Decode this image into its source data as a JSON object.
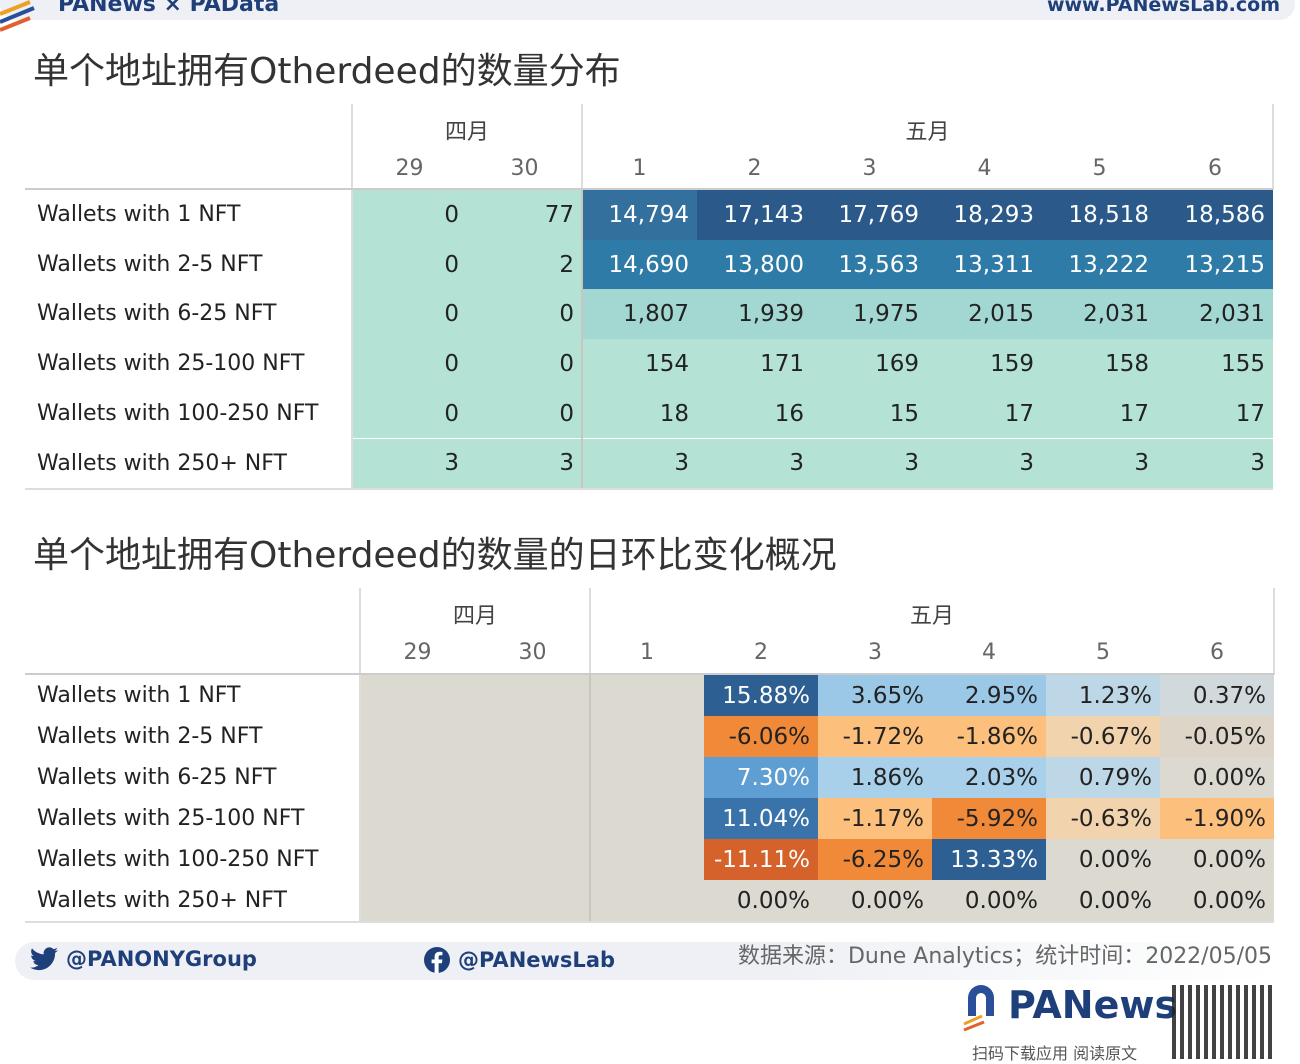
{
  "header": {
    "brand": "PANews × PAData",
    "site": "www.PANewsLab.com"
  },
  "chart_data": [
    {
      "type": "table",
      "title": "单个地址拥有Otherdeed的数量分布",
      "month_groups": [
        {
          "label": "四月",
          "days": [
            "29",
            "30"
          ]
        },
        {
          "label": "五月",
          "days": [
            "1",
            "2",
            "3",
            "4",
            "5",
            "6"
          ]
        }
      ],
      "rows": [
        {
          "label": "Wallets with 1 NFT",
          "values": [
            "0",
            "77",
            "14,794",
            "17,143",
            "17,769",
            "18,293",
            "18,518",
            "18,586"
          ]
        },
        {
          "label": "Wallets with 2-5 NFT",
          "values": [
            "0",
            "2",
            "14,690",
            "13,800",
            "13,563",
            "13,311",
            "13,222",
            "13,215"
          ]
        },
        {
          "label": "Wallets with 6-25 NFT",
          "values": [
            "0",
            "0",
            "1,807",
            "1,939",
            "1,975",
            "2,015",
            "2,031",
            "2,031"
          ]
        },
        {
          "label": "Wallets with 25-100 NFT",
          "values": [
            "0",
            "0",
            "154",
            "171",
            "169",
            "159",
            "158",
            "155"
          ]
        },
        {
          "label": "Wallets with 100-250 NFT",
          "values": [
            "0",
            "0",
            "18",
            "16",
            "15",
            "17",
            "17",
            "17"
          ]
        },
        {
          "label": "Wallets with 250+ NFT",
          "values": [
            "3",
            "3",
            "3",
            "3",
            "3",
            "3",
            "3",
            "3"
          ]
        }
      ]
    },
    {
      "type": "heatmap",
      "title": "单个地址拥有Otherdeed的数量的日环比变化概况",
      "month_groups": [
        {
          "label": "四月",
          "days": [
            "29",
            "30"
          ]
        },
        {
          "label": "五月",
          "days": [
            "1",
            "2",
            "3",
            "4",
            "5",
            "6"
          ]
        }
      ],
      "rows": [
        {
          "label": "Wallets with 1 NFT",
          "values": [
            "",
            "",
            "",
            "15.88%",
            "3.65%",
            "2.95%",
            "1.23%",
            "0.37%"
          ]
        },
        {
          "label": "Wallets with 2-5 NFT",
          "values": [
            "",
            "",
            "",
            "-6.06%",
            "-1.72%",
            "-1.86%",
            "-0.67%",
            "-0.05%"
          ]
        },
        {
          "label": "Wallets with 6-25 NFT",
          "values": [
            "",
            "",
            "",
            "7.30%",
            "1.86%",
            "2.03%",
            "0.79%",
            "0.00%"
          ]
        },
        {
          "label": "Wallets with 25-100 NFT",
          "values": [
            "",
            "",
            "",
            "11.04%",
            "-1.17%",
            "-5.92%",
            "-0.63%",
            "-1.90%"
          ]
        },
        {
          "label": "Wallets with 100-250 NFT",
          "values": [
            "",
            "",
            "",
            "-11.11%",
            "-6.25%",
            "13.33%",
            "0.00%",
            "0.00%"
          ]
        },
        {
          "label": "Wallets with 250+ NFT",
          "values": [
            "",
            "",
            "",
            "0.00%",
            "0.00%",
            "0.00%",
            "0.00%",
            "0.00%"
          ]
        }
      ]
    }
  ],
  "footer": {
    "twitter": "@PANONYGroup",
    "facebook": "@PANewsLab",
    "source": "数据来源：Dune Analytics；统计时间：2022/05/05",
    "logo": "PANews",
    "scan": "扫码下载应用  阅读原文"
  }
}
